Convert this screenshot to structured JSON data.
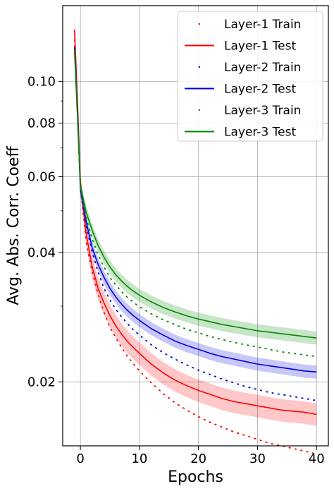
{
  "chart_data": {
    "type": "line",
    "xlabel": "Epochs",
    "ylabel": "Avg. Abs. Corr. Coeff",
    "xlim": [
      -3,
      42
    ],
    "ylim": [
      0.0142,
      0.15
    ],
    "yscale": "log",
    "grid": true,
    "legend_position": "top-right",
    "x_ticks": [
      0,
      10,
      20,
      30,
      40
    ],
    "x_tick_labels": [
      "0",
      "10",
      "20",
      "30",
      "40"
    ],
    "y_ticks": [
      0.02,
      0.04,
      0.06,
      0.08,
      0.1
    ],
    "y_tick_labels": [
      "0.02",
      "0.04",
      "0.06",
      "0.08",
      "0.10"
    ],
    "x": [
      -1,
      -0.5,
      0,
      1,
      2,
      3,
      4,
      5,
      6,
      7,
      8,
      9,
      10,
      12,
      14,
      16,
      18,
      20,
      22,
      24,
      26,
      28,
      30,
      32,
      34,
      36,
      38,
      40
    ],
    "series": [
      {
        "name": "Layer-1 Train",
        "style": "dotted",
        "color": "#ff0000",
        "values": [
          0.125,
          0.085,
          0.057,
          0.042,
          0.036,
          0.032,
          0.029,
          0.0268,
          0.0253,
          0.024,
          0.0229,
          0.022,
          0.0212,
          0.0199,
          0.0188,
          0.0179,
          0.0172,
          0.0166,
          0.0161,
          0.0157,
          0.0153,
          0.015,
          0.0147,
          0.0144,
          0.0142,
          0.014,
          0.0138,
          0.0136
        ],
        "band": 0.0
      },
      {
        "name": "Layer-1 Test",
        "style": "solid",
        "color": "#ff0000",
        "values": [
          0.132,
          0.09,
          0.058,
          0.044,
          0.037,
          0.033,
          0.0305,
          0.0285,
          0.027,
          0.0258,
          0.0248,
          0.024,
          0.0233,
          0.022,
          0.021,
          0.0202,
          0.0196,
          0.0191,
          0.0187,
          0.0183,
          0.018,
          0.0178,
          0.0176,
          0.0174,
          0.0172,
          0.0171,
          0.017,
          0.0168
        ],
        "band": 0.06
      },
      {
        "name": "Layer-2 Train",
        "style": "dotted",
        "color": "#0000dd",
        "values": [
          0.12,
          0.085,
          0.057,
          0.046,
          0.04,
          0.036,
          0.033,
          0.031,
          0.0295,
          0.0283,
          0.0273,
          0.0264,
          0.0257,
          0.0244,
          0.0234,
          0.0226,
          0.0219,
          0.0213,
          0.0208,
          0.0203,
          0.0199,
          0.0195,
          0.0192,
          0.0189,
          0.0187,
          0.0185,
          0.0183,
          0.0181
        ],
        "band": 0.0
      },
      {
        "name": "Layer-2 Test",
        "style": "solid",
        "color": "#0000dd",
        "values": [
          0.12,
          0.085,
          0.056,
          0.047,
          0.041,
          0.0375,
          0.035,
          0.033,
          0.0315,
          0.0303,
          0.0293,
          0.0285,
          0.0278,
          0.0266,
          0.0257,
          0.0249,
          0.0243,
          0.0238,
          0.0233,
          0.0229,
          0.0226,
          0.0223,
          0.022,
          0.0218,
          0.0216,
          0.0214,
          0.0212,
          0.0211
        ],
        "band": 0.035
      },
      {
        "name": "Layer-3 Train",
        "style": "dotted",
        "color": "#008800",
        "values": [
          0.118,
          0.083,
          0.056,
          0.048,
          0.043,
          0.0395,
          0.037,
          0.035,
          0.0336,
          0.0324,
          0.0314,
          0.0306,
          0.0299,
          0.0288,
          0.0279,
          0.0272,
          0.0265,
          0.026,
          0.0255,
          0.0251,
          0.0247,
          0.0244,
          0.0241,
          0.0238,
          0.0235,
          0.0233,
          0.0231,
          0.0229
        ],
        "band": 0.0
      },
      {
        "name": "Layer-3 Test",
        "style": "solid",
        "color": "#008800",
        "values": [
          0.118,
          0.083,
          0.057,
          0.0495,
          0.045,
          0.0415,
          0.039,
          0.037,
          0.0355,
          0.0343,
          0.0333,
          0.0325,
          0.0318,
          0.0307,
          0.0298,
          0.0291,
          0.0285,
          0.028,
          0.0276,
          0.0272,
          0.0269,
          0.0266,
          0.0263,
          0.0261,
          0.0259,
          0.0257,
          0.0255,
          0.0253
        ],
        "band": 0.035
      }
    ]
  }
}
